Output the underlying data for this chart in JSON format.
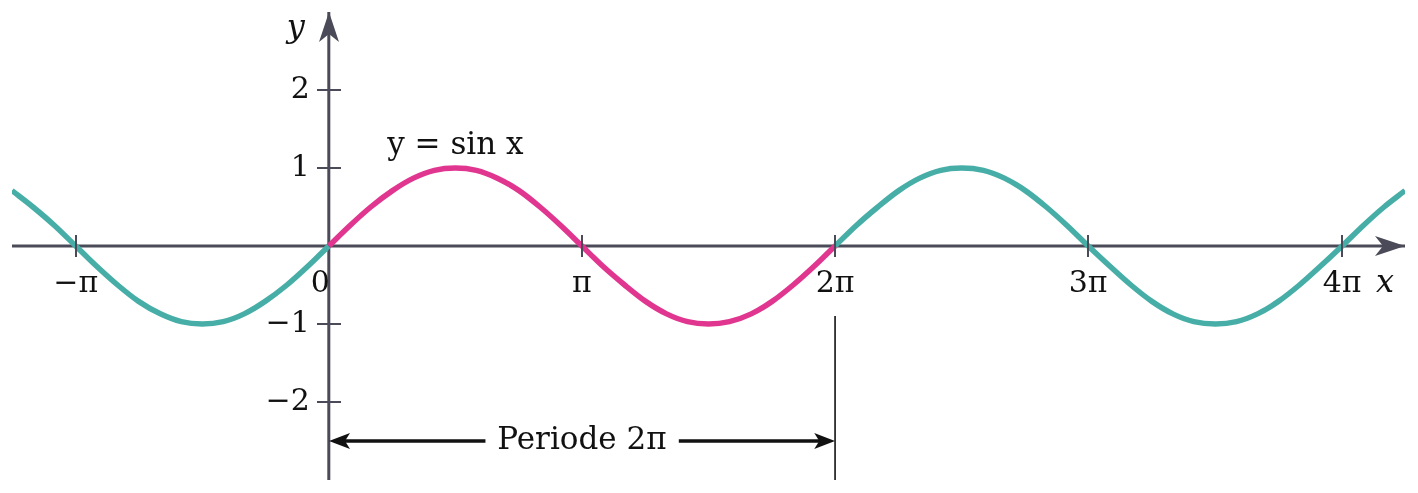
{
  "chart_data": {
    "type": "line",
    "xlabel": "x",
    "ylabel": "y",
    "xlim": [
      -3.93,
      13.35
    ],
    "ylim": [
      -3,
      3
    ],
    "xticks": [
      {
        "value": -3.14,
        "label": "−π"
      },
      0,
      {
        "value": 3.14,
        "label": "π"
      },
      {
        "value": 6.28,
        "label": "2π"
      },
      {
        "value": 9.42,
        "label": "3π"
      },
      {
        "value": 12.57,
        "label": "4π"
      }
    ],
    "yticks": [
      {
        "value": -2,
        "label": "−2"
      },
      {
        "value": -1,
        "label": "−1"
      },
      1,
      2
    ],
    "marker": "none",
    "line_style": "solid",
    "series": [
      {
        "color": "#46aea7",
        "x": [
          -3.93,
          -3.67,
          -3.4,
          -3.14,
          -2.88,
          -2.62,
          -2.36,
          -2.09,
          -1.83,
          -1.57,
          -1.31,
          -1.05,
          -0.79,
          -0.52,
          -0.26,
          0
        ],
        "values": [
          0.71,
          0.5,
          0.26,
          0,
          -0.26,
          -0.5,
          -0.71,
          -0.87,
          -0.97,
          -1,
          -0.97,
          -0.87,
          -0.71,
          -0.5,
          -0.26,
          0
        ]
      },
      {
        "name": "y = sin x",
        "color": "#e0368f",
        "x": [
          0,
          0.26,
          0.52,
          0.79,
          1.05,
          1.31,
          1.57,
          1.83,
          2.09,
          2.36,
          2.62,
          2.88,
          3.14,
          3.4,
          3.67,
          3.93,
          4.19,
          4.45,
          4.71,
          4.97,
          5.24,
          5.5,
          5.76,
          6.02,
          6.28
        ],
        "values": [
          0,
          0.26,
          0.5,
          0.71,
          0.87,
          0.97,
          1,
          0.97,
          0.87,
          0.71,
          0.5,
          0.26,
          0,
          -0.26,
          -0.5,
          -0.71,
          -0.87,
          -0.97,
          -1,
          -0.97,
          -0.87,
          -0.71,
          -0.5,
          -0.26,
          0
        ]
      },
      {
        "color": "#46aea7",
        "x": [
          6.28,
          6.54,
          6.81,
          7.07,
          7.33,
          7.59,
          7.85,
          8.12,
          8.38,
          8.64,
          8.9,
          9.16,
          9.42,
          9.69,
          9.95,
          10.21,
          10.47,
          10.73,
          11,
          11.26,
          11.52,
          11.78,
          12.04,
          12.3,
          12.57,
          12.83,
          13.09,
          13.35
        ],
        "values": [
          0,
          0.26,
          0.5,
          0.71,
          0.87,
          0.97,
          1,
          0.97,
          0.87,
          0.71,
          0.5,
          0.26,
          0,
          -0.26,
          -0.5,
          -0.71,
          -0.87,
          -0.97,
          -1,
          -0.97,
          -0.87,
          -0.71,
          -0.5,
          -0.26,
          0,
          0.26,
          0.5,
          0.71
        ]
      }
    ],
    "ref_lines": [
      {
        "axis": "x",
        "value": 6.28
      }
    ],
    "annotations": [
      "Periode 2π"
    ]
  }
}
